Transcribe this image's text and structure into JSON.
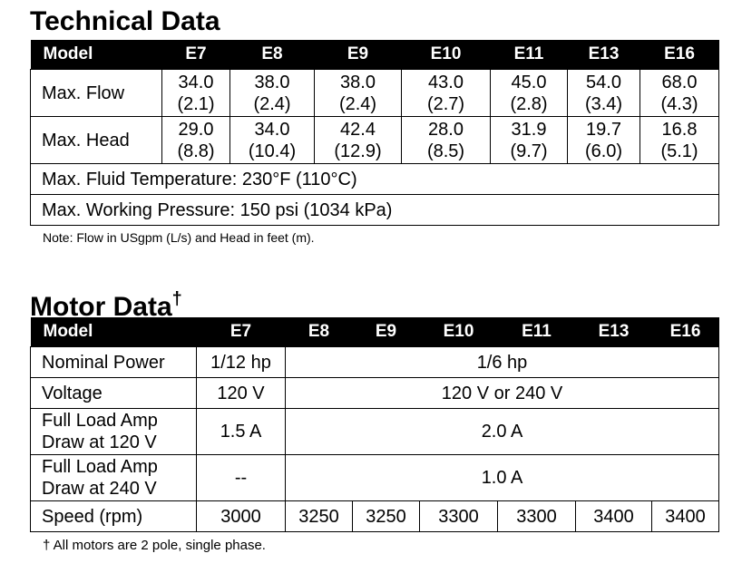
{
  "technical_data": {
    "title": "Technical Data",
    "columns": [
      "Model",
      "E7",
      "E8",
      "E9",
      "E10",
      "E11",
      "E13",
      "E16"
    ],
    "rows": [
      {
        "label": "Max. Flow",
        "values": [
          [
            "34.0",
            "(2.1)"
          ],
          [
            "38.0",
            "(2.4)"
          ],
          [
            "38.0",
            "(2.4)"
          ],
          [
            "43.0",
            "(2.7)"
          ],
          [
            "45.0",
            "(2.8)"
          ],
          [
            "54.0",
            "(3.4)"
          ],
          [
            "68.0",
            "(4.3)"
          ]
        ]
      },
      {
        "label": "Max. Head",
        "values": [
          [
            "29.0",
            "(8.8)"
          ],
          [
            "34.0",
            "(10.4)"
          ],
          [
            "42.4",
            "(12.9)"
          ],
          [
            "28.0",
            "(8.5)"
          ],
          [
            "31.9",
            "(9.7)"
          ],
          [
            "19.7",
            "(6.0)"
          ],
          [
            "16.8",
            "(5.1)"
          ]
        ]
      }
    ],
    "spec_rows": [
      "Max. Fluid Temperature:  230°F (110°C)",
      "Max. Working Pressure:  150 psi (1034 kPa)"
    ],
    "note": "Note: Flow in USgpm (L/s) and Head in feet (m)."
  },
  "motor_data": {
    "title": "Motor Data",
    "title_symbol": "†",
    "columns": [
      "Model",
      "E7",
      "E8",
      "E9",
      "E10",
      "E11",
      "E13",
      "E16"
    ],
    "rows": [
      {
        "label": [
          "Nominal Power"
        ],
        "values": [
          "1/12 hp",
          "1/6 hp"
        ]
      },
      {
        "label": [
          "Voltage"
        ],
        "values": [
          "120 V",
          "120 V or 240 V"
        ]
      },
      {
        "label": [
          "Full Load Amp",
          "Draw at 120 V"
        ],
        "values": [
          "1.5 A",
          "2.0 A"
        ]
      },
      {
        "label": [
          "Full Load Amp",
          "Draw at 240 V"
        ],
        "values": [
          "--",
          "1.0 A"
        ]
      },
      {
        "label": [
          "Speed (rpm)"
        ],
        "values": [
          "3000",
          "3250",
          "3250",
          "3300",
          "3300",
          "3400",
          "3400"
        ]
      }
    ],
    "footnote": "† All motors are 2 pole, single phase."
  }
}
